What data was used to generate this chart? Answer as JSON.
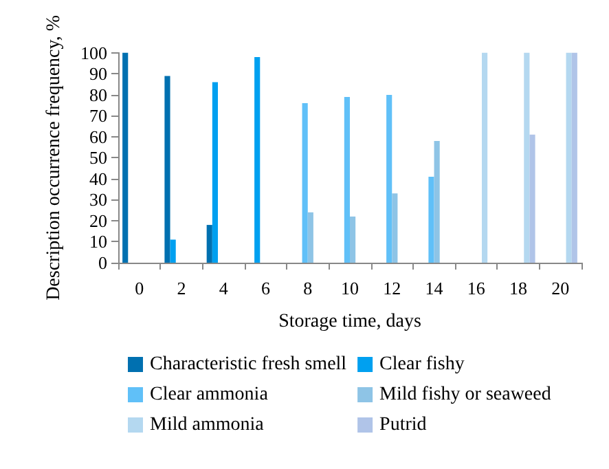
{
  "chart_data": {
    "type": "bar",
    "xlabel": "Storage time, days",
    "ylabel": "Description occurrence frequency, %",
    "categories": [
      "0",
      "2",
      "4",
      "6",
      "8",
      "10",
      "12",
      "14",
      "16",
      "18",
      "20"
    ],
    "series": [
      {
        "name": "Characteristic fresh smell",
        "color": "#0070b0",
        "values": [
          100,
          89,
          18,
          null,
          null,
          null,
          null,
          null,
          null,
          null,
          null
        ]
      },
      {
        "name": "Clear fishy",
        "color": "#00a0f0",
        "values": [
          null,
          11,
          86,
          98,
          null,
          null,
          null,
          null,
          null,
          null,
          null
        ]
      },
      {
        "name": "Clear ammonia",
        "color": "#60c0f8",
        "values": [
          null,
          null,
          null,
          null,
          76,
          79,
          80,
          41,
          null,
          null,
          null
        ]
      },
      {
        "name": "Mild fishy or seaweed",
        "color": "#8ec4e6",
        "values": [
          null,
          null,
          null,
          null,
          24,
          22,
          33,
          58,
          null,
          null,
          null
        ]
      },
      {
        "name": "Mild ammonia",
        "color": "#b4d8f0",
        "values": [
          null,
          null,
          null,
          null,
          null,
          null,
          null,
          null,
          100,
          100,
          100
        ]
      },
      {
        "name": "Putrid",
        "color": "#b0c4e8",
        "values": [
          null,
          null,
          null,
          null,
          null,
          null,
          null,
          null,
          null,
          61,
          100
        ]
      }
    ],
    "ylim": [
      0,
      100
    ],
    "yticks": [
      0,
      10,
      20,
      30,
      40,
      50,
      60,
      70,
      80,
      90,
      100
    ],
    "grid": false,
    "legend": "bottom"
  }
}
